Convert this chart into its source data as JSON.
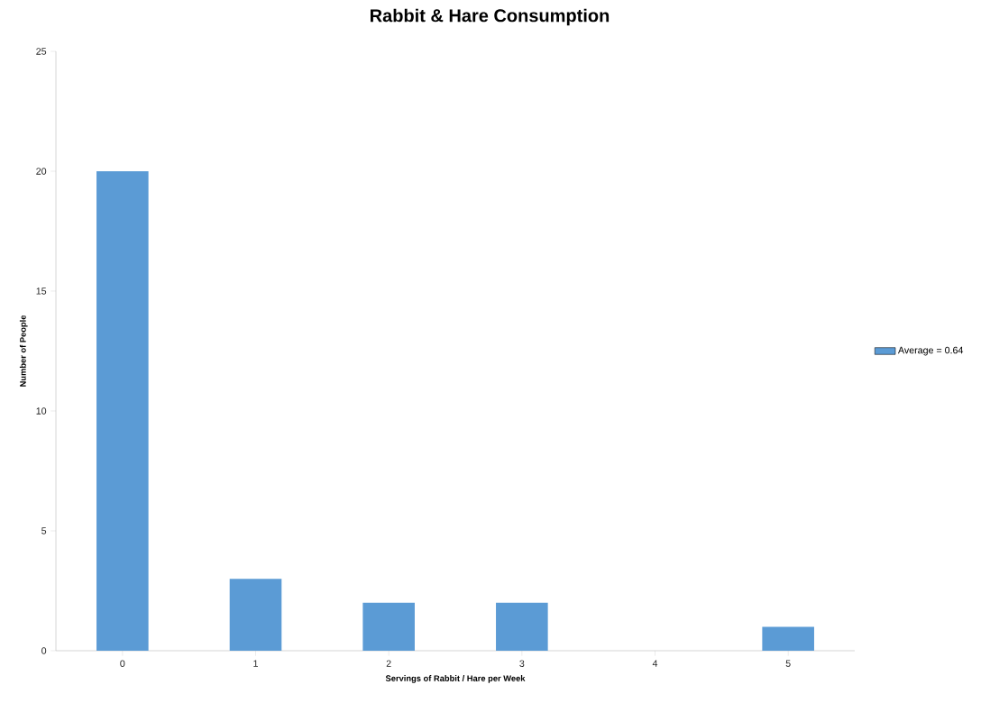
{
  "chart_data": {
    "type": "bar",
    "title": "Rabbit & Hare Consumption",
    "xlabel": "Servings of Rabbit / Hare per Week",
    "ylabel": "Number of People",
    "categories": [
      "0",
      "1",
      "2",
      "3",
      "4",
      "5"
    ],
    "series": [
      {
        "name": "Average = 0.64",
        "color": "#5b9bd5",
        "values": [
          20,
          3,
          2,
          2,
          0,
          1
        ]
      }
    ],
    "ylim": [
      0,
      25
    ],
    "yticks": [
      0,
      5,
      10,
      15,
      20,
      25
    ],
    "grid": false,
    "legend": "right"
  }
}
